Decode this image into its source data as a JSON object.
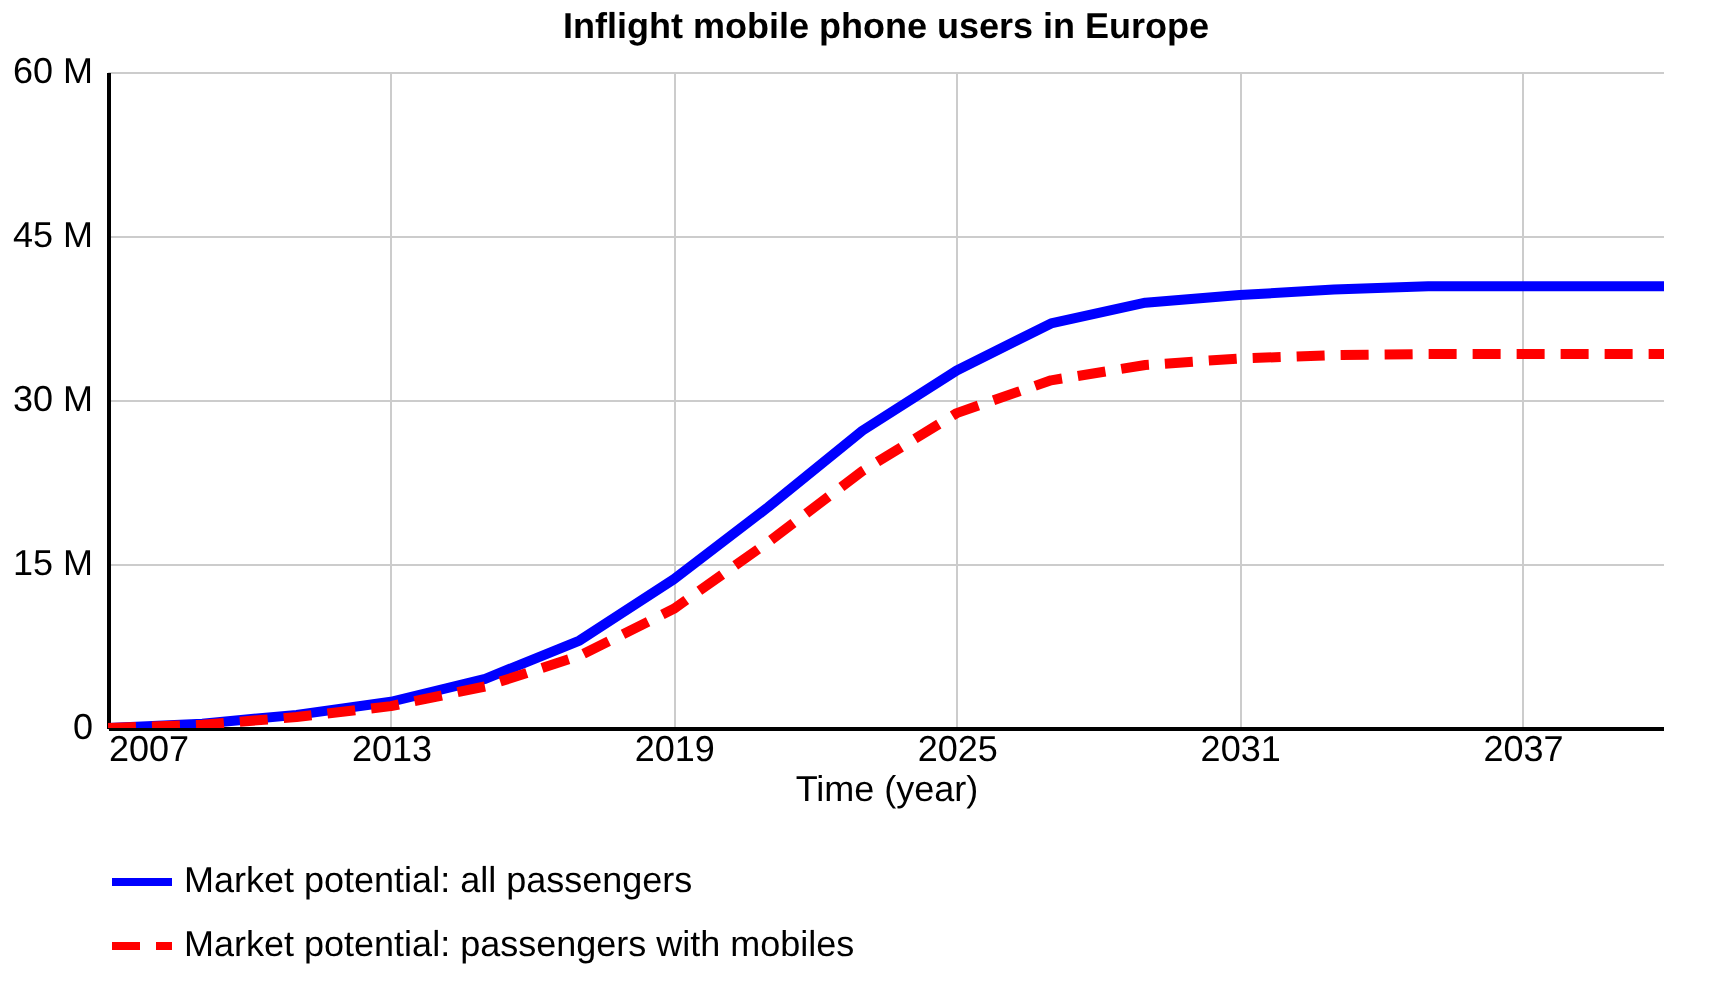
{
  "chart_data": {
    "type": "line",
    "title": "Inflight mobile phone users in Europe",
    "xlabel": "Time (year)",
    "x": [
      2007,
      2009,
      2011,
      2013,
      2015,
      2017,
      2019,
      2021,
      2023,
      2025,
      2027,
      2029,
      2031,
      2033,
      2035,
      2037,
      2040
    ],
    "series": [
      {
        "name": "Market potential: all passengers",
        "color": "#0000ff",
        "line_style": "solid",
        "values": [
          0,
          0.4,
          1.2,
          2.4,
          4.5,
          8.0,
          13.6,
          20.2,
          27.2,
          32.7,
          37.0,
          38.9,
          39.6,
          40.1,
          40.4,
          40.4,
          40.4
        ]
      },
      {
        "name": "Market potential: passengers with mobiles",
        "color": "#ff0000",
        "line_style": "dashed",
        "values": [
          0,
          0.3,
          1.0,
          2.0,
          3.8,
          6.6,
          10.9,
          17.0,
          23.5,
          28.8,
          31.8,
          33.2,
          33.8,
          34.1,
          34.2,
          34.2,
          34.2
        ]
      }
    ],
    "xlim": [
      2007,
      2040
    ],
    "xticks": [
      2007,
      2013,
      2019,
      2025,
      2031,
      2037
    ],
    "ylim": [
      0,
      60
    ],
    "yticks": [
      0,
      {
        "value": 15,
        "label": "15 M"
      },
      {
        "value": 30,
        "label": "30 M"
      },
      {
        "value": 45,
        "label": "45 M"
      },
      {
        "value": 60,
        "label": "60 M"
      }
    ],
    "grid": true,
    "legend": "bottom"
  }
}
